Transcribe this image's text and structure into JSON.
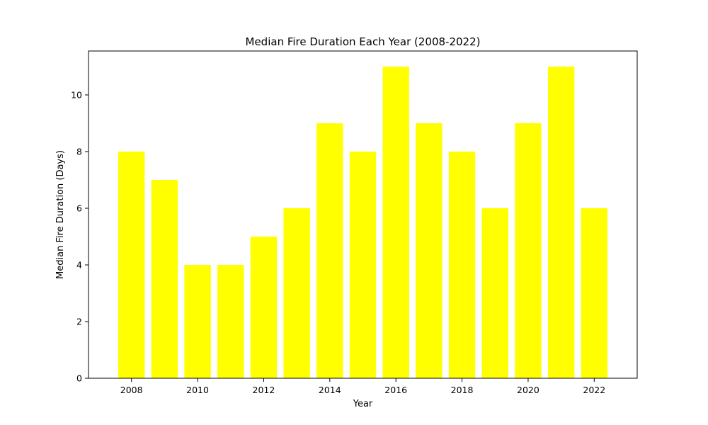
{
  "chart_data": {
    "type": "bar",
    "title": "Median Fire Duration Each Year (2008-2022)",
    "xlabel": "Year",
    "ylabel": "Median Fire Duration (Days)",
    "x": [
      2008,
      2009,
      2010,
      2011,
      2012,
      2013,
      2014,
      2015,
      2016,
      2017,
      2018,
      2019,
      2020,
      2021,
      2022
    ],
    "values": [
      8,
      7,
      4,
      4,
      5,
      6,
      9,
      8,
      11,
      9,
      8,
      6,
      9,
      11,
      6
    ],
    "xlim": [
      2006.7,
      2023.3
    ],
    "ylim": [
      0,
      11.55
    ],
    "xticks": [
      "2008",
      "2010",
      "2012",
      "2014",
      "2016",
      "2018",
      "2020",
      "2022"
    ],
    "yticks": [
      "0",
      "2",
      "4",
      "6",
      "8",
      "10"
    ],
    "bar_color": "#ffff00",
    "grid": false,
    "legend": "none"
  }
}
